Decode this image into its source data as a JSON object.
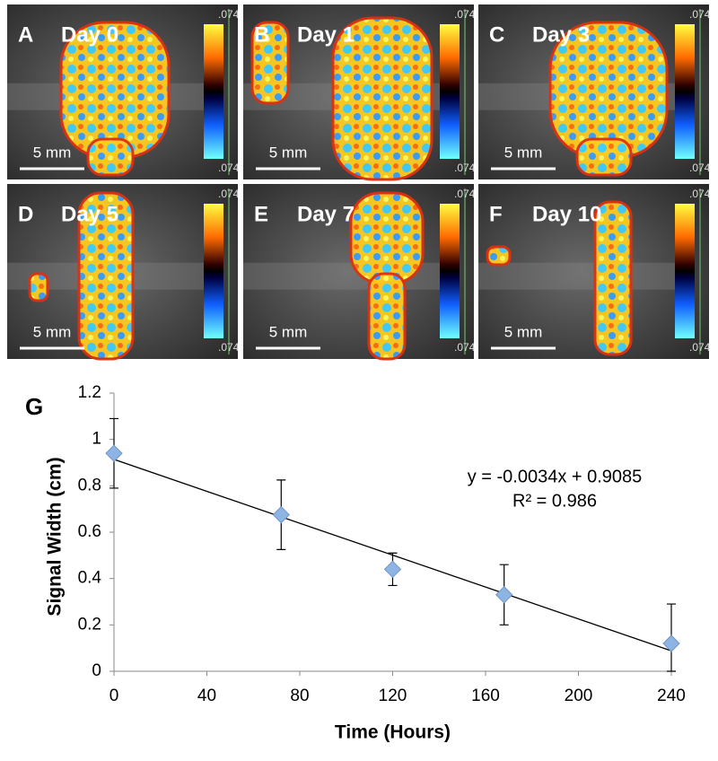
{
  "panels": [
    {
      "label": "A",
      "day": "Day 0",
      "scale_bar": "5 mm",
      "colorbar_top": ".074",
      "colorbar_bottom": ".074"
    },
    {
      "label": "B",
      "day": "Day 1",
      "scale_bar": "5 mm",
      "colorbar_top": ".074",
      "colorbar_bottom": ".074"
    },
    {
      "label": "C",
      "day": "Day 3",
      "scale_bar": "5 mm",
      "colorbar_top": ".074",
      "colorbar_bottom": ".074"
    },
    {
      "label": "D",
      "day": "Day 5",
      "scale_bar": "5 mm",
      "colorbar_top": ".074",
      "colorbar_bottom": ".074"
    },
    {
      "label": "E",
      "day": "Day 7",
      "scale_bar": "5 mm",
      "colorbar_top": ".074",
      "colorbar_bottom": ".074"
    },
    {
      "label": "F",
      "day": "Day 10",
      "scale_bar": "5 mm",
      "colorbar_top": ".074",
      "colorbar_bottom": ".074"
    }
  ],
  "chart_data": {
    "type": "scatter",
    "panel_label": "G",
    "x_label": "Time (Hours)",
    "y_label": "Signal Width (cm)",
    "x": [
      0,
      72,
      120,
      168,
      240
    ],
    "values": [
      0.94,
      0.675,
      0.44,
      0.33,
      0.12
    ],
    "errors": [
      0.15,
      0.15,
      0.07,
      0.13,
      0.17
    ],
    "color": "#8eb4e3",
    "trendline": true,
    "annotations": [
      "y = -0.0034x + 0.9085",
      "R² = 0.986"
    ],
    "xlim": [
      0,
      240
    ],
    "xticks": [
      0,
      40,
      80,
      120,
      160,
      200,
      240
    ],
    "ylim": [
      0,
      1.2
    ],
    "yticks": [
      0,
      0.2,
      0.4,
      0.6,
      0.8,
      1,
      1.2
    ]
  }
}
